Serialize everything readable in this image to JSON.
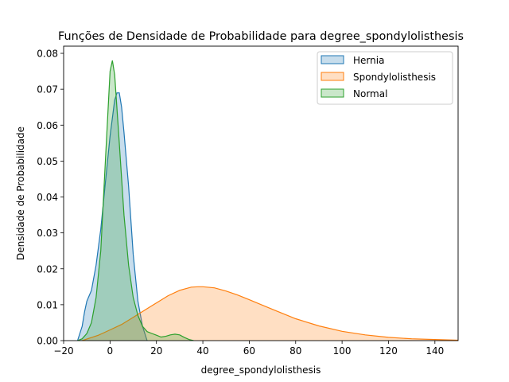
{
  "chart_data": {
    "type": "area",
    "title": "Funções de Densidade de Probabilidade para degree_spondylolisthesis",
    "xlabel": "degree_spondylolisthesis",
    "ylabel": "Densidade de Probabilidade",
    "xlim": [
      -20,
      150
    ],
    "ylim": [
      0,
      0.082
    ],
    "xticks": [
      -20,
      0,
      20,
      40,
      60,
      80,
      100,
      120,
      140
    ],
    "xtick_labels": [
      "−20",
      "0",
      "20",
      "40",
      "60",
      "80",
      "100",
      "120",
      "140"
    ],
    "yticks": [
      0,
      0.01,
      0.02,
      0.03,
      0.04,
      0.05,
      0.06,
      0.07,
      0.08
    ],
    "ytick_labels": [
      "0.00",
      "0.01",
      "0.02",
      "0.03",
      "0.04",
      "0.05",
      "0.06",
      "0.07",
      "0.08"
    ],
    "legend_position": "top-right",
    "grid": false,
    "series": [
      {
        "name": "Hernia",
        "color": "#1f77b4",
        "x": [
          -14,
          -12,
          -11,
          -10,
          -9,
          -8,
          -6,
          -4,
          -2,
          0,
          2,
          3,
          4,
          5,
          6,
          8,
          10,
          12,
          14,
          16
        ],
        "y": [
          0.0,
          0.004,
          0.008,
          0.011,
          0.0125,
          0.014,
          0.021,
          0.031,
          0.044,
          0.057,
          0.067,
          0.069,
          0.069,
          0.065,
          0.058,
          0.043,
          0.024,
          0.011,
          0.004,
          0.0
        ]
      },
      {
        "name": "Spondylolisthesis",
        "color": "#ff7f0e",
        "x": [
          -12,
          -5,
          0,
          5,
          10,
          15,
          20,
          25,
          30,
          35,
          38,
          40,
          45,
          50,
          55,
          60,
          70,
          80,
          90,
          100,
          110,
          120,
          130,
          140,
          150
        ],
        "y": [
          0.0,
          0.0015,
          0.003,
          0.0045,
          0.0065,
          0.0085,
          0.0105,
          0.0125,
          0.014,
          0.0149,
          0.015,
          0.015,
          0.0147,
          0.0138,
          0.0127,
          0.0114,
          0.0087,
          0.0061,
          0.0041,
          0.0026,
          0.0016,
          0.0009,
          0.0005,
          0.0003,
          0.0001
        ]
      },
      {
        "name": "Normal",
        "color": "#2ca02c",
        "x": [
          -14,
          -12,
          -10,
          -8,
          -6,
          -4,
          -2,
          0,
          1,
          2,
          4,
          6,
          8,
          10,
          12,
          14,
          16,
          18,
          20,
          22,
          24,
          26,
          28,
          30,
          32,
          34,
          36
        ],
        "y": [
          0.0,
          0.0005,
          0.002,
          0.005,
          0.012,
          0.025,
          0.05,
          0.075,
          0.078,
          0.074,
          0.055,
          0.035,
          0.021,
          0.012,
          0.007,
          0.004,
          0.0025,
          0.002,
          0.0015,
          0.001,
          0.0012,
          0.0016,
          0.0018,
          0.0016,
          0.0009,
          0.0003,
          0.0
        ]
      }
    ]
  }
}
